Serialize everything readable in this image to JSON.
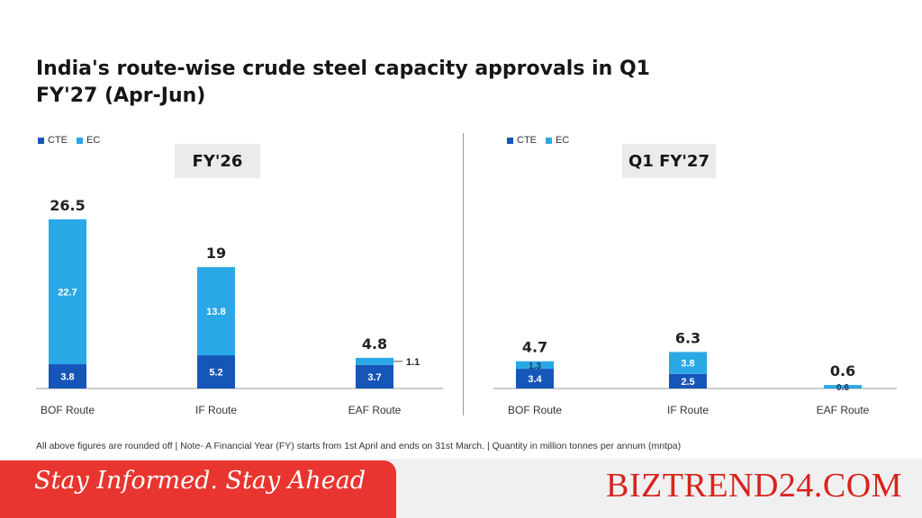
{
  "title": "India's route-wise crude steel capacity approvals in Q1 FY'27 (Apr-Jun)",
  "colors": {
    "cte": "#1656b8",
    "ec": "#2aa8e6",
    "axis": "#9a9a9a",
    "brand": "#d7241f",
    "banner": "#e8352f"
  },
  "chart_data": [
    {
      "type": "bar",
      "stacked": true,
      "title": "FY'26",
      "legend": [
        "CTE",
        "EC"
      ],
      "legend_position": "top-left",
      "categories": [
        "BOF Route",
        "IF Route",
        "EAF Route"
      ],
      "series": [
        {
          "name": "CTE",
          "values": [
            3.8,
            5.2,
            3.7
          ],
          "labels": [
            "3.8",
            "5.2",
            "3.7"
          ]
        },
        {
          "name": "EC",
          "values": [
            22.7,
            13.8,
            1.1
          ],
          "labels": [
            "22.7",
            "13.8",
            "1.1"
          ]
        }
      ],
      "totals": [
        26.5,
        19,
        4.8
      ],
      "total_labels": [
        "26.5",
        "19",
        "4.8"
      ],
      "ylim": [
        0,
        30
      ],
      "grid": false
    },
    {
      "type": "bar",
      "stacked": true,
      "title": "Q1 FY'27",
      "legend": [
        "CTE",
        "EC"
      ],
      "legend_position": "top-left",
      "categories": [
        "BOF Route",
        "IF Route",
        "EAF Route"
      ],
      "series": [
        {
          "name": "CTE",
          "values": [
            3.4,
            2.5,
            0
          ],
          "labels": [
            "3.4",
            "2.5",
            ""
          ]
        },
        {
          "name": "EC",
          "values": [
            1.3,
            3.8,
            0.6
          ],
          "labels": [
            "1.3",
            "3.8",
            "0.6"
          ]
        }
      ],
      "totals": [
        4.7,
        6.3,
        0.6
      ],
      "total_labels": [
        "4.7",
        "6.3",
        "0.6"
      ],
      "ylim": [
        0,
        10
      ],
      "grid": false
    }
  ],
  "footnote": "All above figures are rounded off | Note- A Financial Year (FY) starts from 1st April and ends on 31st March. |  Quantity in million tonnes per annum (mntpa)",
  "banner": {
    "tagline": "Stay Informed. Stay Ahead",
    "brand": "BIZTREND24.COM"
  }
}
